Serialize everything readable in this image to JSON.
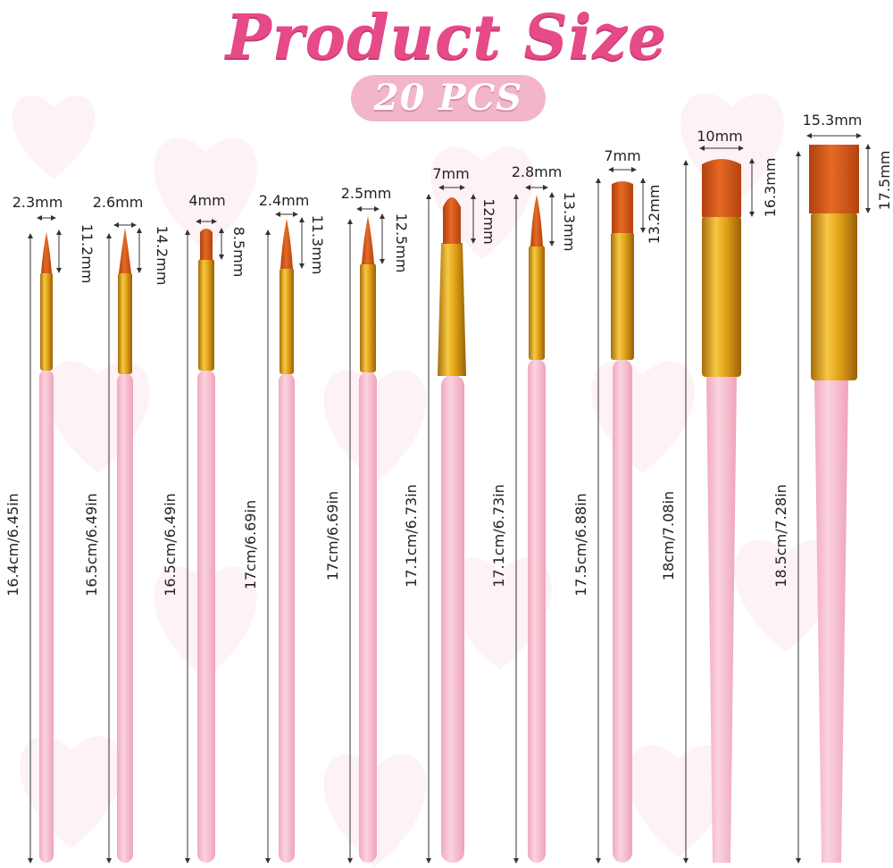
{
  "title": "Product Size",
  "badge": "20 PCS",
  "colors": {
    "title_pink": "#e64a88",
    "badge_bg": "#f2b6c8",
    "handle_pink": "#f7c4d4",
    "ferrule_gold": "#e2a418",
    "bristle_orange": "#d2561a"
  },
  "brushes": [
    {
      "width_label": "2.3mm",
      "bristle_label": "11.2mm",
      "length_label": "16.4cm/6.45in",
      "shape": "round"
    },
    {
      "width_label": "2.6mm",
      "bristle_label": "14.2mm",
      "length_label": "16.5cm/6.49in",
      "shape": "round"
    },
    {
      "width_label": "4mm",
      "bristle_label": "8.5mm",
      "length_label": "16.5cm/6.49in",
      "shape": "flat"
    },
    {
      "width_label": "2.4mm",
      "bristle_label": "11.3mm",
      "length_label": "17cm/6.69in",
      "shape": "round"
    },
    {
      "width_label": "2.5mm",
      "bristle_label": "12.5mm",
      "length_label": "17cm/6.69in",
      "shape": "round"
    },
    {
      "width_label": "7mm",
      "bristle_label": "12mm",
      "length_label": "17.1cm/6.73in",
      "shape": "filbert"
    },
    {
      "width_label": "2.8mm",
      "bristle_label": "13.3mm",
      "length_label": "17.1cm/6.73in",
      "shape": "round"
    },
    {
      "width_label": "7mm",
      "bristle_label": "13.2mm",
      "length_label": "17.5cm/6.88in",
      "shape": "flat"
    },
    {
      "width_label": "10mm",
      "bristle_label": "16.3mm",
      "length_label": "18cm/7.08in",
      "shape": "flat"
    },
    {
      "width_label": "15.3mm",
      "bristle_label": "17.5mm",
      "length_label": "18.5cm/7.28in",
      "shape": "flat"
    }
  ]
}
